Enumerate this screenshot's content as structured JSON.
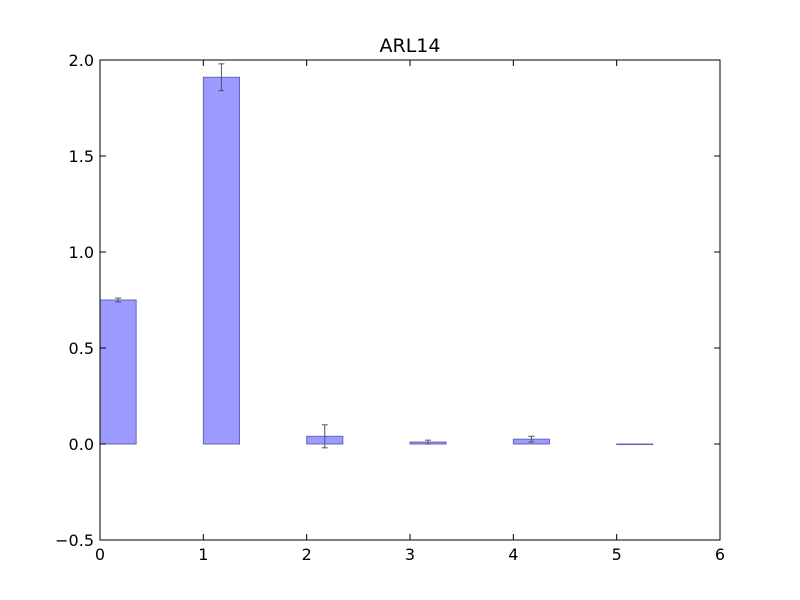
{
  "chart_data": {
    "type": "bar",
    "title": "ARL14",
    "xlabel": "",
    "ylabel": "",
    "xlim": [
      0,
      6
    ],
    "ylim": [
      -0.5,
      2.0
    ],
    "x_ticks": [
      "0",
      "1",
      "2",
      "3",
      "4",
      "5",
      "6"
    ],
    "y_ticks": [
      "2.0",
      "1.5",
      "1.0",
      "0.5",
      "0.0",
      "−0.5"
    ],
    "bar_color": "#9b9bff",
    "bar_edge_color": "#6666bb",
    "error_color": "#555555",
    "bar_width": 0.35,
    "grid": false,
    "bars": [
      {
        "x": 0,
        "value": 0.75,
        "error": 0.01
      },
      {
        "x": 1,
        "value": 1.91,
        "error": 0.07
      },
      {
        "x": 2,
        "value": 0.04,
        "error": 0.06
      },
      {
        "x": 3,
        "value": 0.01,
        "error": 0.01
      },
      {
        "x": 4,
        "value": 0.025,
        "error": 0.015
      },
      {
        "x": 5,
        "value": 0.0,
        "error": 0.0
      }
    ]
  }
}
